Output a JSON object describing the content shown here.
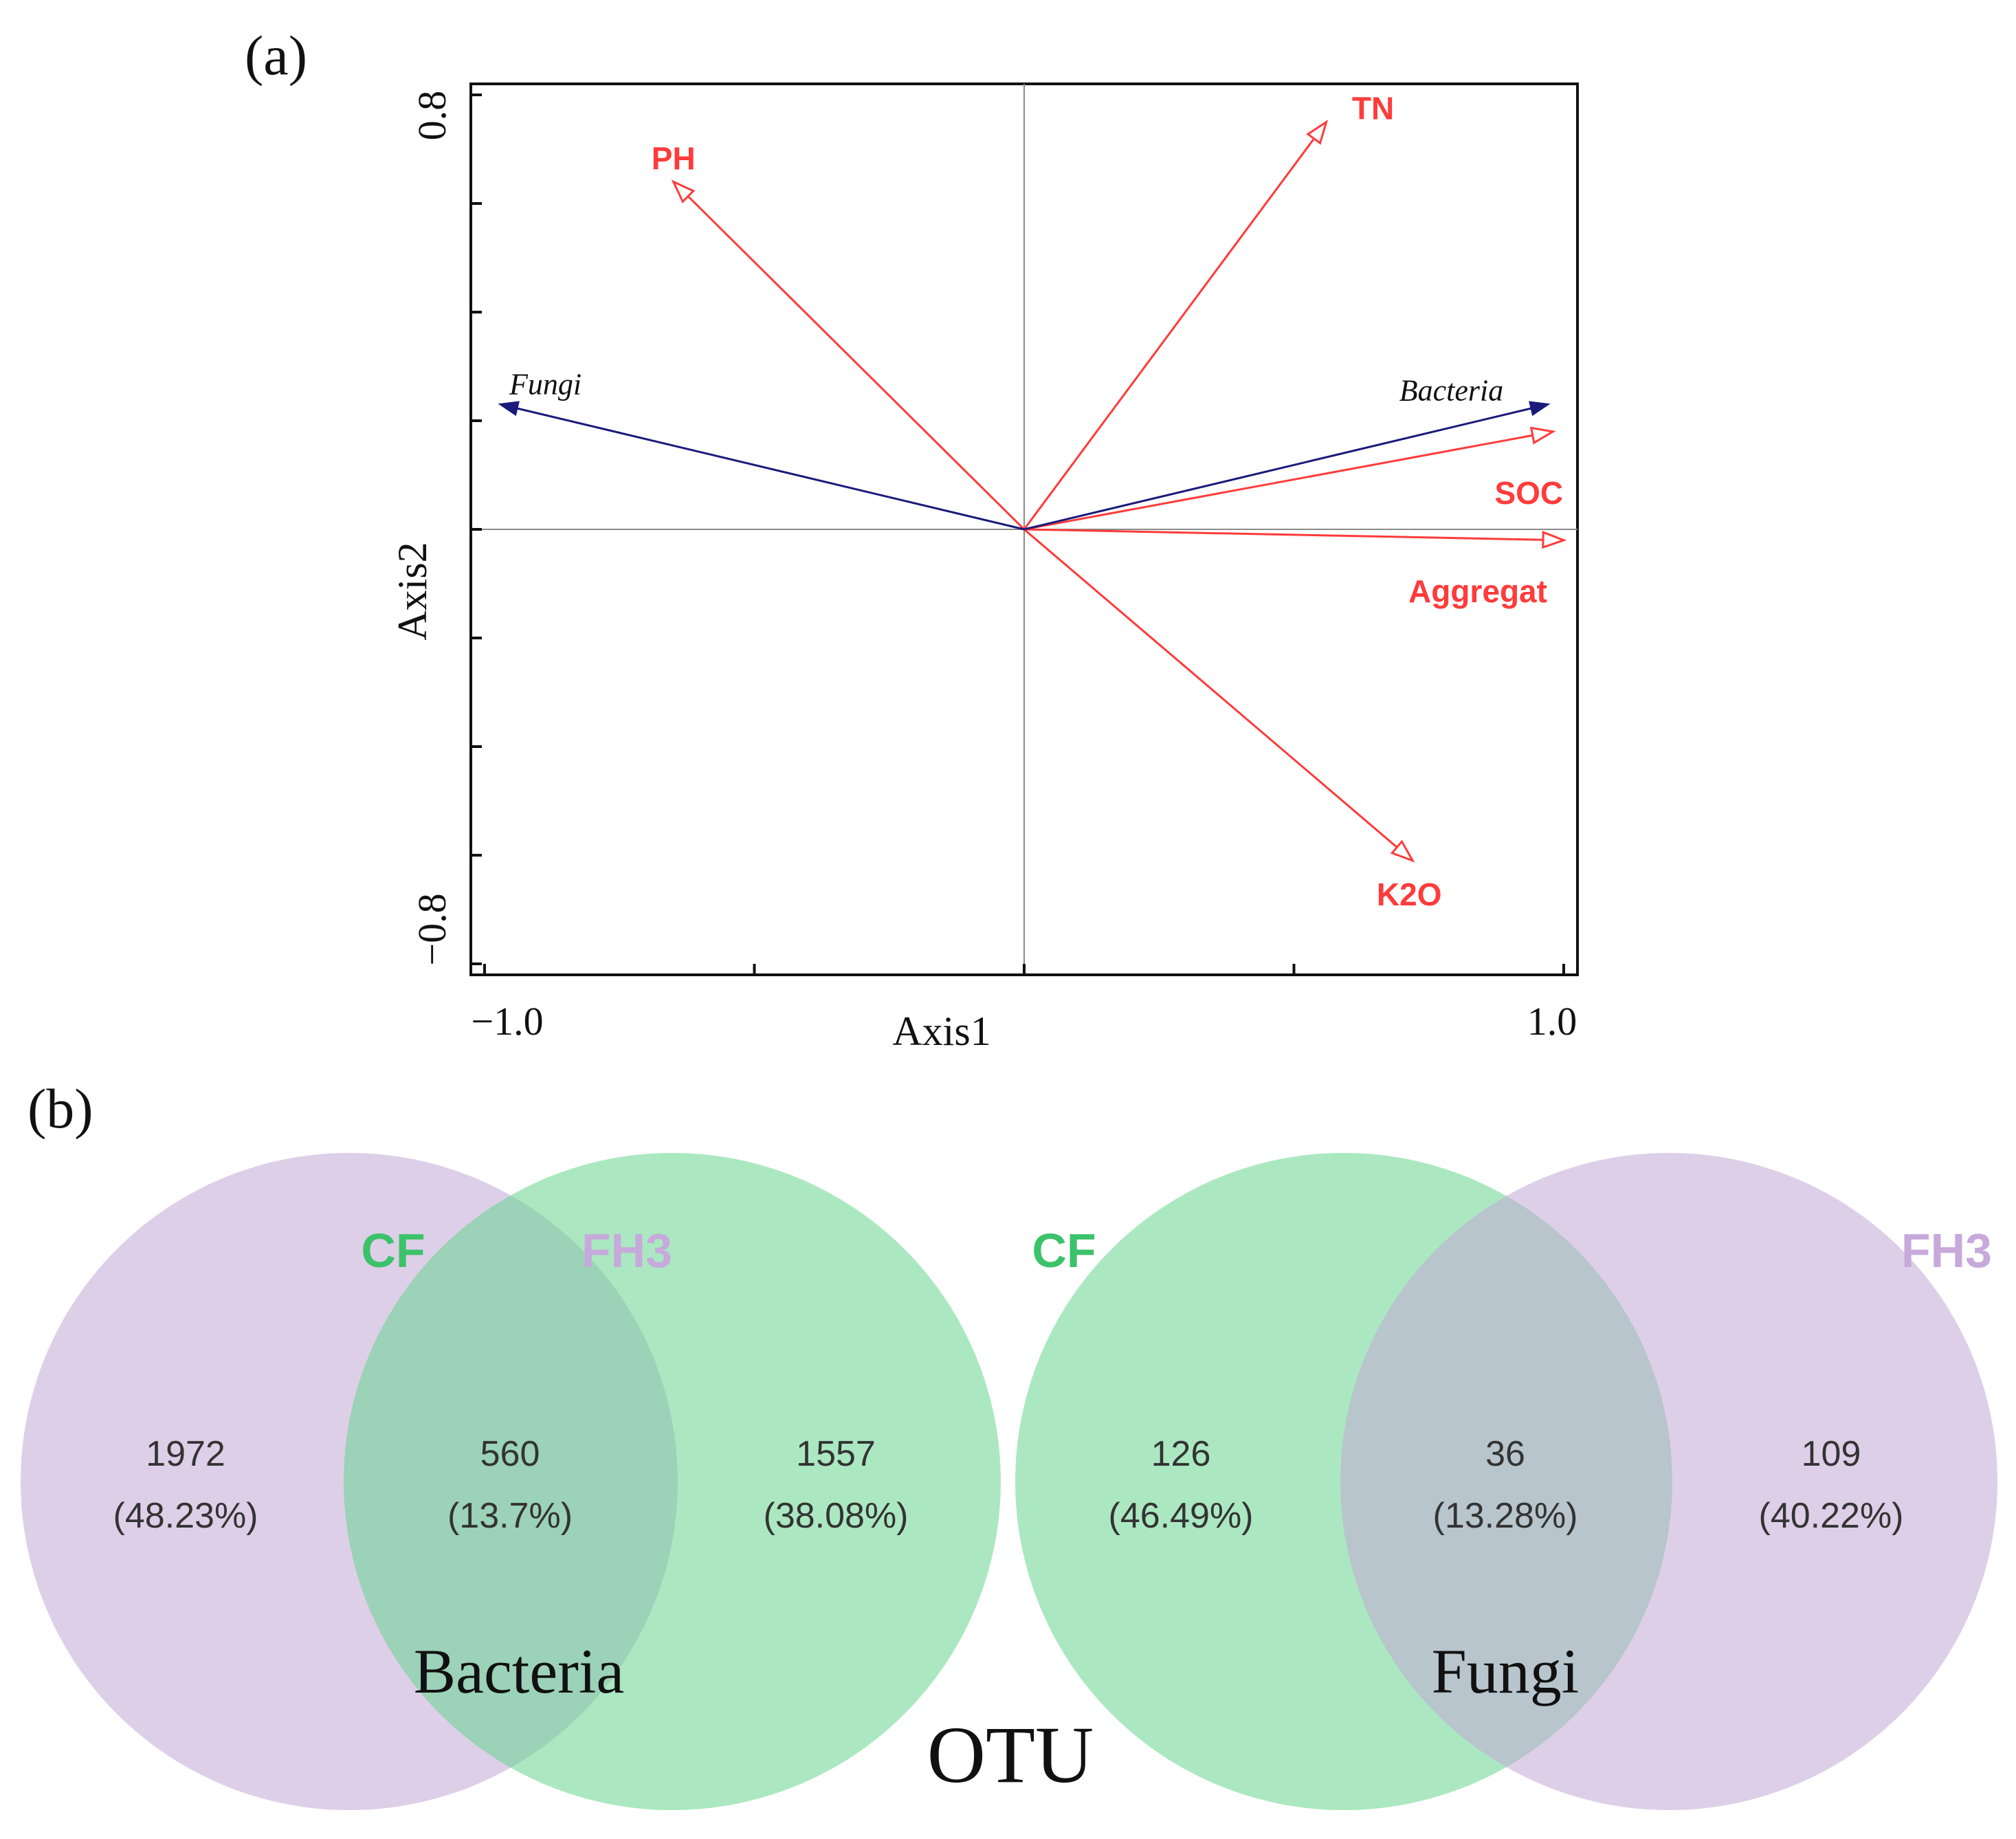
{
  "panel_a_label": "(a)",
  "panel_b_label": "(b)",
  "colors": {
    "env_vectors": "#ff3b3b",
    "species_vectors": "#1a1a7a",
    "cf_circle": "#66d68e",
    "fh3_circle": "#c2a8d6",
    "cf_label": "#3cc26a",
    "fh3_label": "#c7a9dc"
  },
  "chart_data": [
    {
      "type": "biplot",
      "title": "",
      "xlabel": "Axis1",
      "ylabel": "Axis2",
      "xlim": [
        -1.0,
        1.0
      ],
      "ylim": [
        -0.8,
        0.8
      ],
      "x_tick_labels": [
        "−1.0",
        "1.0"
      ],
      "y_tick_labels": [
        "0.8",
        "−0.8"
      ],
      "x_ticks": [
        -1.0,
        -0.5,
        0.0,
        0.5,
        1.0
      ],
      "y_ticks": [
        -0.8,
        -0.6,
        -0.4,
        -0.2,
        0.0,
        0.2,
        0.4,
        0.6,
        0.8
      ],
      "env_vectors": [
        {
          "name": "PH",
          "x": -0.65,
          "y": 0.64
        },
        {
          "name": "TN",
          "x": 0.56,
          "y": 0.75
        },
        {
          "name": "SOC",
          "x": 0.98,
          "y": 0.18
        },
        {
          "name": "Aggregat",
          "x": 1.0,
          "y": -0.02
        },
        {
          "name": "K2O",
          "x": 0.72,
          "y": -0.61
        }
      ],
      "species_vectors": [
        {
          "name": "Fungi",
          "x": -0.97,
          "y": 0.23
        },
        {
          "name": "Bacteria",
          "x": 0.97,
          "y": 0.23
        }
      ]
    },
    {
      "type": "venn",
      "title": "Bacteria",
      "sets": [
        "CF",
        "FH3"
      ],
      "regions": [
        {
          "set": "FH3 only",
          "count": "1972",
          "percent": "(48.23%)"
        },
        {
          "set": "CF ∩ FH3",
          "count": "560",
          "percent": "(13.7%)"
        },
        {
          "set": "CF only",
          "count": "1557",
          "percent": "(38.08%)"
        }
      ]
    },
    {
      "type": "venn",
      "title": "Fungi",
      "sets": [
        "CF",
        "FH3"
      ],
      "regions": [
        {
          "set": "CF only",
          "count": "126",
          "percent": "(46.49%)"
        },
        {
          "set": "CF ∩ FH3",
          "count": "36",
          "percent": "(13.28%)"
        },
        {
          "set": "FH3 only",
          "count": "109",
          "percent": "(40.22%)"
        }
      ]
    }
  ],
  "otu_label": "OTU"
}
